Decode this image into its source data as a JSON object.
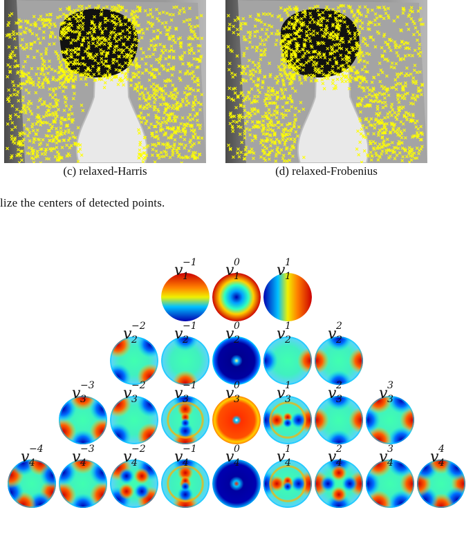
{
  "panels": [
    {
      "label": "(c) relaxed-Harris"
    },
    {
      "label": "(d) relaxed-Frobenius"
    }
  ],
  "caption_fragment": "lize the centers of detected points.",
  "marker_color": "#ffff00",
  "zernike_rows": [
    {
      "n": 1,
      "ms": [
        -1,
        0,
        1
      ]
    },
    {
      "n": 2,
      "ms": [
        -2,
        -1,
        0,
        1,
        2
      ]
    },
    {
      "n": 3,
      "ms": [
        -3,
        -2,
        -1,
        0,
        1,
        2,
        3
      ]
    },
    {
      "n": 4,
      "ms": [
        -4,
        -3,
        -2,
        -1,
        0,
        1,
        2,
        3,
        4
      ]
    }
  ]
}
